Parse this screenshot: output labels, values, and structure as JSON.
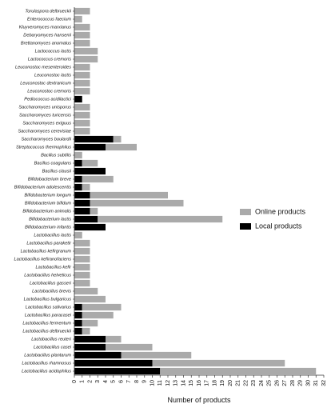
{
  "chart_data": {
    "type": "bar",
    "orientation": "horizontal",
    "stacked": true,
    "xlabel": "Number of products",
    "xlim": [
      0,
      32
    ],
    "xticks": [
      "0",
      "1",
      "2",
      "3",
      "4",
      "5",
      "6",
      "7",
      "8",
      "9",
      "10",
      "11",
      "12",
      "13",
      "14",
      "15",
      "16",
      "17",
      "18",
      "19",
      "20",
      "21",
      "22",
      "23",
      "24",
      "25",
      "26",
      "27",
      "28",
      "29",
      "30",
      "31",
      "32"
    ],
    "legend_position": "right",
    "categories": [
      "Torulaspora delbrueckii",
      "Enterococcus faecium",
      "Kluyveromyces marxianus",
      "Debaryomyces hansenii",
      "Brettanomyces anomalus",
      "Lactococcus lactis",
      "Lactococcus cremoris",
      "Leuconostoc mesenteroides",
      "Leuconostoc lactis",
      "Leuconostoc dextranicum",
      "Leuconostoc cremoris",
      "Pediococcus acidilactici",
      "Saccharomyces unisporus",
      "Saccharomyces turicensis",
      "Saccharomyces exiguus",
      "Saccharomyces cerevisiae",
      "Saccharomyces boulardii",
      "Streptococcus thermophilus",
      "Bacillus subtilis",
      "Bacillus coagulans",
      "Bacillus clausii",
      "Bifidobacterium breve",
      "Bifidobacterium adolescentis",
      "Bifidobacterium longum",
      "Bifidobacterium bifidum",
      "Bifidobacterium animalis",
      "Bifidobacterium lactis",
      "Bifidobacterium infantis",
      "Lactobacillus lactis",
      "Lactobacillus paraketir",
      "Lactobacillus kefirgranum",
      "Lactobacillus kefiranofaciens",
      "Lactobacillus kefir",
      "Lactobacillus helveticus",
      "Lactobacillus gasseri",
      "Lactobacillus brevis",
      "Lactobacillus bulgaricus",
      "Lactobacillus salivarius",
      "Lactobacillus paracasei",
      "Lactobacillus fermentum",
      "Lactobacillus delbrueckii",
      "Lactobacillus reuteri",
      "Lactobacillus casei",
      "Lactobacillus plantarum",
      "Lactobacillus rhamnosus",
      "Lactobacillus acidophilus"
    ],
    "series": [
      {
        "name": "Local products",
        "color": "#000000",
        "values": [
          0,
          0,
          0,
          0,
          0,
          0,
          0,
          0,
          0,
          0,
          0,
          1,
          0,
          0,
          0,
          0,
          5,
          4,
          0,
          1,
          4,
          1,
          1,
          2,
          2,
          2,
          3,
          4,
          0,
          0,
          0,
          0,
          0,
          0,
          0,
          0,
          0,
          1,
          1,
          1,
          1,
          4,
          4,
          6,
          10,
          11
        ]
      },
      {
        "name": "Online products",
        "color": "#aaaaaa",
        "values": [
          2,
          1,
          2,
          2,
          2,
          3,
          3,
          2,
          2,
          2,
          2,
          0,
          2,
          2,
          2,
          2,
          1,
          4,
          1,
          2,
          0,
          4,
          1,
          10,
          12,
          1,
          16,
          0,
          1,
          2,
          2,
          2,
          2,
          2,
          2,
          3,
          4,
          5,
          4,
          2,
          1,
          2,
          6,
          9,
          17,
          20
        ]
      }
    ]
  }
}
